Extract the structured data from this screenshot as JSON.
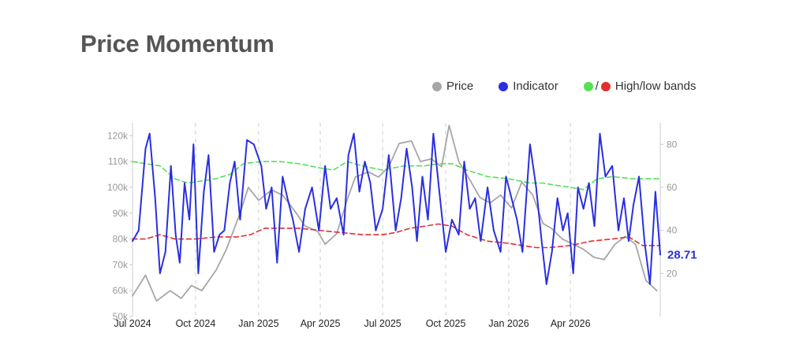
{
  "title": "Price Momentum",
  "legend": {
    "price_label": "Price",
    "indicator_label": "Indicator",
    "bands_label": "High/low bands",
    "slash": "/"
  },
  "colors": {
    "price": "#a6a6a6",
    "indicator": "#2a2fe0",
    "high_band": "#55e055",
    "low_band": "#e03030",
    "gridline": "#d0d0d0"
  },
  "chart_data": {
    "type": "line",
    "title": "Price Momentum",
    "legend_position": "top-right",
    "grid": "dashed vertical lines at each quarter",
    "x_range": [
      "2024-07-01",
      "2026-08-10"
    ],
    "x_ticks": [
      "Jul 2024",
      "Oct 2024",
      "Jan 2025",
      "Apr 2025",
      "Jul 2025",
      "Oct 2025",
      "Jan 2026",
      "Apr 2026"
    ],
    "x_tick_dates": [
      "2024-07-01",
      "2024-10-01",
      "2025-01-01",
      "2025-04-01",
      "2025-07-01",
      "2025-10-01",
      "2026-01-01",
      "2026-04-01"
    ],
    "left_axis": {
      "range": [
        50000,
        125000
      ],
      "ticks": [
        "50k",
        "60k",
        "70k",
        "80k",
        "90k",
        "100k",
        "110k",
        "120k"
      ],
      "tick_values": [
        50000,
        60000,
        70000,
        80000,
        90000,
        100000,
        110000,
        120000
      ]
    },
    "right_axis": {
      "range": [
        0,
        90
      ],
      "ticks": [
        "20",
        "40",
        "60",
        "80"
      ],
      "tick_values": [
        20,
        40,
        60,
        80
      ]
    },
    "last_value_label": "28.71",
    "series": [
      {
        "name": "Price",
        "axis": "left",
        "dates": [
          "2024-07-01",
          "2024-07-20",
          "2024-08-05",
          "2024-08-25",
          "2024-09-10",
          "2024-09-25",
          "2024-10-10",
          "2024-10-31",
          "2024-11-15",
          "2024-12-05",
          "2024-12-17",
          "2025-01-01",
          "2025-01-20",
          "2025-02-05",
          "2025-02-25",
          "2025-03-10",
          "2025-03-28",
          "2025-04-08",
          "2025-04-25",
          "2025-05-10",
          "2025-05-22",
          "2025-06-10",
          "2025-06-25",
          "2025-07-10",
          "2025-07-25",
          "2025-08-12",
          "2025-08-25",
          "2025-09-10",
          "2025-09-25",
          "2025-10-06",
          "2025-10-20",
          "2025-11-05",
          "2025-11-20",
          "2025-12-05",
          "2025-12-20",
          "2026-01-05",
          "2026-01-20",
          "2026-02-05",
          "2026-02-20",
          "2026-03-05",
          "2026-03-20",
          "2026-04-05",
          "2026-04-20",
          "2026-05-05",
          "2026-05-20",
          "2026-06-05",
          "2026-06-20",
          "2026-07-05",
          "2026-07-20",
          "2026-08-05"
        ],
        "values": [
          58000,
          66000,
          56000,
          60000,
          57000,
          62000,
          60000,
          68000,
          76000,
          90000,
          100000,
          95000,
          99000,
          97000,
          90000,
          85000,
          83000,
          78000,
          82000,
          95000,
          104000,
          106000,
          104000,
          108000,
          117000,
          118000,
          110000,
          111000,
          108000,
          124000,
          110000,
          103000,
          96000,
          94000,
          97000,
          92000,
          102000,
          97000,
          86000,
          84000,
          80000,
          78000,
          76000,
          73000,
          72000,
          78000,
          81000,
          78000,
          64000,
          60000
        ]
      },
      {
        "name": "Indicator",
        "axis": "right",
        "dates": [
          "2024-07-01",
          "2024-07-10",
          "2024-07-20",
          "2024-07-26",
          "2024-08-03",
          "2024-08-10",
          "2024-08-18",
          "2024-08-26",
          "2024-09-02",
          "2024-09-08",
          "2024-09-15",
          "2024-09-22",
          "2024-09-28",
          "2024-10-05",
          "2024-10-13",
          "2024-10-20",
          "2024-10-28",
          "2024-11-05",
          "2024-11-12",
          "2024-11-20",
          "2024-11-27",
          "2024-12-05",
          "2024-12-15",
          "2024-12-25",
          "2025-01-05",
          "2025-01-12",
          "2025-01-20",
          "2025-01-28",
          "2025-02-05",
          "2025-02-12",
          "2025-02-20",
          "2025-03-01",
          "2025-03-10",
          "2025-03-20",
          "2025-03-30",
          "2025-04-08",
          "2025-04-16",
          "2025-04-25",
          "2025-05-05",
          "2025-05-12",
          "2025-05-20",
          "2025-05-28",
          "2025-06-05",
          "2025-06-13",
          "2025-06-21",
          "2025-07-01",
          "2025-07-10",
          "2025-07-20",
          "2025-07-28",
          "2025-08-05",
          "2025-08-13",
          "2025-08-20",
          "2025-08-28",
          "2025-09-05",
          "2025-09-13",
          "2025-09-21",
          "2025-10-01",
          "2025-10-10",
          "2025-10-20",
          "2025-10-28",
          "2025-11-05",
          "2025-11-13",
          "2025-11-21",
          "2025-12-01",
          "2025-12-10",
          "2025-12-20",
          "2025-12-28",
          "2026-01-05",
          "2026-01-13",
          "2026-01-21",
          "2026-02-01",
          "2026-02-10",
          "2026-02-18",
          "2026-02-25",
          "2026-03-05",
          "2026-03-13",
          "2026-03-21",
          "2026-03-28",
          "2026-04-05",
          "2026-04-12",
          "2026-04-20",
          "2026-04-28",
          "2026-05-06",
          "2026-05-14",
          "2026-05-22",
          "2026-06-01",
          "2026-06-10",
          "2026-06-18",
          "2026-06-25",
          "2026-07-02",
          "2026-07-10",
          "2026-07-18",
          "2026-07-26",
          "2026-08-03",
          "2026-08-10"
        ],
        "values": [
          35,
          40,
          78,
          85,
          55,
          20,
          30,
          70,
          38,
          25,
          62,
          45,
          80,
          20,
          58,
          75,
          30,
          38,
          40,
          62,
          72,
          45,
          82,
          80,
          70,
          50,
          60,
          25,
          65,
          55,
          45,
          30,
          50,
          60,
          40,
          70,
          50,
          55,
          38,
          75,
          85,
          58,
          72,
          62,
          40,
          50,
          75,
          40,
          55,
          78,
          60,
          35,
          65,
          45,
          85,
          60,
          30,
          45,
          38,
          72,
          50,
          55,
          35,
          60,
          40,
          30,
          65,
          55,
          45,
          30,
          80,
          60,
          35,
          15,
          30,
          55,
          40,
          48,
          20,
          60,
          50,
          62,
          42,
          85,
          65,
          70,
          40,
          55,
          35,
          52,
          65,
          35,
          15,
          58,
          28.71
        ]
      },
      {
        "name": "High band",
        "axis": "right",
        "dates": [
          "2024-07-01",
          "2024-07-20",
          "2024-08-10",
          "2024-09-01",
          "2024-09-20",
          "2024-10-10",
          "2024-10-30",
          "2024-11-20",
          "2024-12-10",
          "2025-01-05",
          "2025-02-01",
          "2025-03-01",
          "2025-04-01",
          "2025-04-20",
          "2025-05-10",
          "2025-06-01",
          "2025-07-01",
          "2025-08-01",
          "2025-09-01",
          "2025-09-20",
          "2025-10-10",
          "2025-11-01",
          "2025-12-01",
          "2026-01-01",
          "2026-02-01",
          "2026-02-20",
          "2026-03-10",
          "2026-04-01",
          "2026-04-20",
          "2026-05-10",
          "2026-06-01",
          "2026-07-01",
          "2026-08-10"
        ],
        "values": [
          72,
          71,
          70,
          64,
          62,
          63,
          64,
          66,
          71,
          72,
          72,
          71,
          69,
          68,
          72,
          70,
          68,
          70,
          70,
          71,
          71,
          68,
          65,
          64,
          62,
          62,
          61,
          60,
          59,
          64,
          65,
          64,
          64
        ]
      },
      {
        "name": "Low band",
        "axis": "right",
        "dates": [
          "2024-07-01",
          "2024-07-20",
          "2024-08-10",
          "2024-09-01",
          "2024-10-01",
          "2024-11-01",
          "2024-12-01",
          "2024-12-20",
          "2025-01-10",
          "2025-02-01",
          "2025-03-01",
          "2025-04-01",
          "2025-05-01",
          "2025-06-01",
          "2025-07-01",
          "2025-07-20",
          "2025-08-10",
          "2025-09-01",
          "2025-09-20",
          "2025-10-10",
          "2025-11-01",
          "2025-12-01",
          "2026-01-01",
          "2026-01-20",
          "2026-02-10",
          "2026-03-01",
          "2026-04-01",
          "2026-05-01",
          "2026-06-01",
          "2026-06-25",
          "2026-07-15",
          "2026-08-10"
        ],
        "values": [
          36,
          36,
          38,
          36,
          36,
          37,
          37,
          38,
          41,
          41,
          41,
          40,
          39,
          38,
          38,
          39,
          41,
          42,
          43,
          42,
          38,
          35,
          34,
          33,
          32,
          32,
          33,
          35,
          36,
          37,
          33,
          33
        ]
      }
    ]
  }
}
